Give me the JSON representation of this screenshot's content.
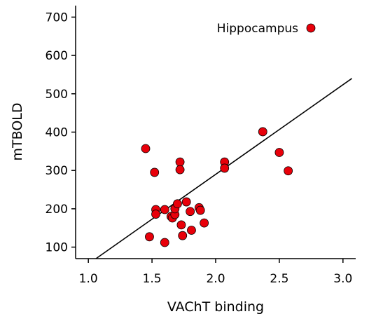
{
  "chart_data": {
    "type": "scatter",
    "xlabel": "VAChT binding",
    "ylabel": "mTBOLD",
    "xlim": [
      0.9,
      3.1
    ],
    "ylim": [
      70,
      730
    ],
    "xticks": [
      1.0,
      1.5,
      2.0,
      2.5,
      3.0
    ],
    "xtick_labels": [
      "1.0",
      "1.5",
      "2.0",
      "2.5",
      "3.0"
    ],
    "yticks": [
      100,
      200,
      300,
      400,
      500,
      600,
      700
    ],
    "ytick_labels": [
      "100",
      "200",
      "300",
      "400",
      "500",
      "600",
      "700"
    ],
    "legend_position": "top-right",
    "series": [
      {
        "name": "Hippocampus",
        "color": "#e8000a",
        "points": [
          [
            1.45,
            357
          ],
          [
            1.52,
            295
          ],
          [
            1.48,
            127
          ],
          [
            1.53,
            198
          ],
          [
            1.53,
            186
          ],
          [
            1.6,
            198
          ],
          [
            1.6,
            112
          ],
          [
            1.65,
            180
          ],
          [
            1.66,
            176
          ],
          [
            1.68,
            185
          ],
          [
            1.68,
            200
          ],
          [
            1.7,
            213
          ],
          [
            1.72,
            322
          ],
          [
            1.72,
            302
          ],
          [
            1.73,
            158
          ],
          [
            1.74,
            130
          ],
          [
            1.77,
            218
          ],
          [
            1.8,
            193
          ],
          [
            1.81,
            144
          ],
          [
            1.87,
            203
          ],
          [
            1.88,
            196
          ],
          [
            1.91,
            163
          ],
          [
            2.07,
            322
          ],
          [
            2.07,
            306
          ],
          [
            2.37,
            401
          ],
          [
            2.5,
            347
          ],
          [
            2.57,
            299
          ]
        ]
      }
    ],
    "fit_line": {
      "x": [
        1.06,
        3.07
      ],
      "y": [
        70,
        540
      ]
    }
  }
}
